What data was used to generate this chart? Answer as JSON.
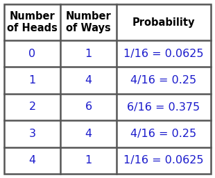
{
  "col_headers": [
    "Number\nof Heads",
    "Number\nof Ways",
    "Probability"
  ],
  "rows": [
    [
      "0",
      "1",
      "1/16 = 0.0625"
    ],
    [
      "1",
      "4",
      "4/16 = 0.25"
    ],
    [
      "2",
      "6",
      "6/16 = 0.375"
    ],
    [
      "3",
      "4",
      "4/16 = 0.25"
    ],
    [
      "4",
      "1",
      "1/16 = 0.0625"
    ]
  ],
  "background_color": "#ffffff",
  "border_color": "#555555",
  "header_text_color": "#000000",
  "data_text_color": "#1a1acc",
  "header_fontsize": 10.5,
  "data_fontsize": 11.5,
  "fig_width": 3.1,
  "fig_height": 2.56,
  "dpi": 100
}
